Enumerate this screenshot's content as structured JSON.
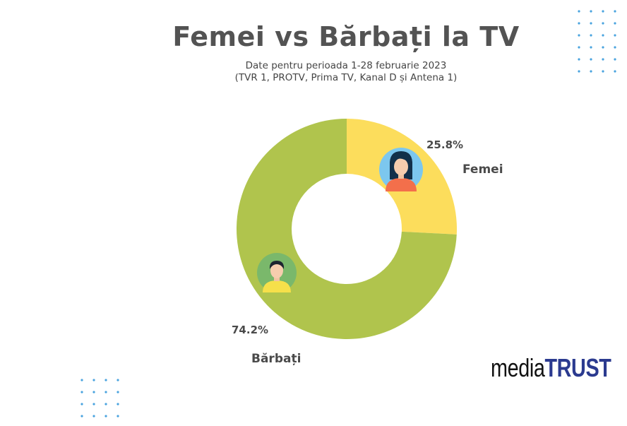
{
  "title": "Femei vs Bărbați la TV",
  "subtitle_line1": "Date pentru perioada 1-28 februarie 2023",
  "subtitle_line2": "(TVR 1, PROTV, Prima TV, Kanal D și Antena 1)",
  "brand": {
    "part1": "media",
    "part2": "TRUST"
  },
  "colors": {
    "femei": "#FCDD5C",
    "barbati": "#B0C44D",
    "text": "#4a4a4a",
    "dots": "#4AA3DF"
  },
  "chart_data": {
    "type": "pie",
    "donut": true,
    "title": "Femei vs Bărbați la TV",
    "categories": [
      "Femei",
      "Bărbați"
    ],
    "values": [
      25.8,
      74.2
    ],
    "value_labels": [
      "25.8%",
      "74.2%"
    ],
    "colors": [
      "#FCDD5C",
      "#B0C44D"
    ],
    "icons": [
      "woman-avatar-icon",
      "man-avatar-icon"
    ],
    "legend": "none"
  }
}
